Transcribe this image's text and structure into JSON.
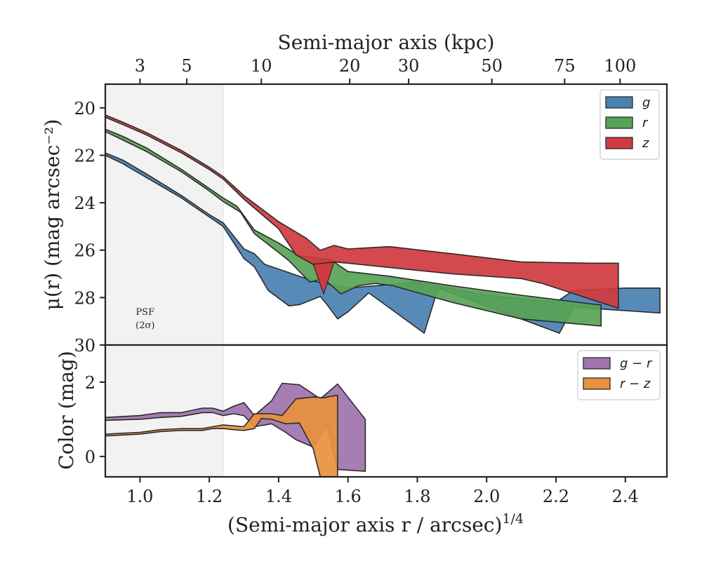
{
  "chart_data": [
    {
      "type": "area",
      "panel": "surface-brightness",
      "ylabel": "μ(r) (mag arcsec⁻²)",
      "top_xlabel": "Semi-major axis (kpc)",
      "xlim": [
        0.9,
        2.52
      ],
      "ylim": [
        30,
        19
      ],
      "y_inverted": true,
      "yticks": [
        20,
        22,
        24,
        26,
        28,
        30
      ],
      "top_ticks": [
        {
          "label": "3",
          "x": 1.0
        },
        {
          "label": "5",
          "x": 1.135
        },
        {
          "label": "10",
          "x": 1.35
        },
        {
          "label": "20",
          "x": 1.605
        },
        {
          "label": "30",
          "x": 1.775
        },
        {
          "label": "50",
          "x": 2.015
        },
        {
          "label": "75",
          "x": 2.225
        },
        {
          "label": "100",
          "x": 2.385
        }
      ],
      "psf_region": {
        "x_max": 1.24,
        "label_line1": "PSF",
        "label_line2": "(2σ)"
      },
      "legend": {
        "location": "top-right"
      },
      "series": [
        {
          "name": "g",
          "color": "#4a80b2",
          "upper": [
            [
              0.9,
              21.9
            ],
            [
              0.95,
              22.2
            ],
            [
              1.02,
              22.8
            ],
            [
              1.12,
              23.7
            ],
            [
              1.2,
              24.5
            ],
            [
              1.24,
              24.85
            ],
            [
              1.27,
              25.4
            ],
            [
              1.3,
              25.95
            ],
            [
              1.33,
              26.15
            ],
            [
              1.36,
              26.6
            ],
            [
              1.5,
              27.3
            ],
            [
              1.6,
              27.6
            ],
            [
              1.8,
              27.35
            ],
            [
              2.0,
              27.9
            ],
            [
              2.2,
              28.2
            ],
            [
              2.25,
              27.7
            ],
            [
              2.4,
              27.6
            ],
            [
              2.5,
              27.6
            ]
          ],
          "lower": [
            [
              2.5,
              28.65
            ],
            [
              2.4,
              28.55
            ],
            [
              2.25,
              28.4
            ],
            [
              2.21,
              29.5
            ],
            [
              1.86,
              27.6
            ],
            [
              1.82,
              29.5
            ],
            [
              1.66,
              27.8
            ],
            [
              1.6,
              28.6
            ],
            [
              1.57,
              28.9
            ],
            [
              1.54,
              28.3
            ],
            [
              1.52,
              27.95
            ],
            [
              1.46,
              28.3
            ],
            [
              1.43,
              28.35
            ],
            [
              1.37,
              27.7
            ],
            [
              1.33,
              26.7
            ],
            [
              1.3,
              26.35
            ],
            [
              1.24,
              25.0
            ],
            [
              1.2,
              24.6
            ],
            [
              1.12,
              23.8
            ],
            [
              1.02,
              22.95
            ],
            [
              0.95,
              22.35
            ],
            [
              0.9,
              22.0
            ]
          ]
        },
        {
          "name": "r",
          "color": "#57a355",
          "upper": [
            [
              0.9,
              20.9
            ],
            [
              0.95,
              21.2
            ],
            [
              1.02,
              21.7
            ],
            [
              1.12,
              22.6
            ],
            [
              1.2,
              23.4
            ],
            [
              1.24,
              23.8
            ],
            [
              1.28,
              24.15
            ],
            [
              1.33,
              25.15
            ],
            [
              1.4,
              25.7
            ],
            [
              1.46,
              26.25
            ],
            [
              1.55,
              26.4
            ],
            [
              1.6,
              26.9
            ],
            [
              1.72,
              27.1
            ],
            [
              1.9,
              27.5
            ],
            [
              2.1,
              27.9
            ],
            [
              2.32,
              28.3
            ],
            [
              2.33,
              28.3
            ]
          ],
          "lower": [
            [
              2.33,
              29.2
            ],
            [
              2.1,
              28.9
            ],
            [
              1.9,
              28.2
            ],
            [
              1.73,
              27.5
            ],
            [
              1.68,
              27.4
            ],
            [
              1.63,
              27.5
            ],
            [
              1.58,
              27.85
            ],
            [
              1.53,
              27.2
            ],
            [
              1.49,
              27.35
            ],
            [
              1.43,
              26.45
            ],
            [
              1.4,
              26.1
            ],
            [
              1.33,
              25.3
            ],
            [
              1.29,
              24.4
            ],
            [
              1.24,
              23.95
            ],
            [
              1.2,
              23.5
            ],
            [
              1.12,
              22.7
            ],
            [
              1.02,
              21.85
            ],
            [
              0.95,
              21.35
            ],
            [
              0.9,
              21.0
            ]
          ]
        },
        {
          "name": "z",
          "color": "#d03a3e",
          "upper": [
            [
              0.9,
              20.3
            ],
            [
              0.95,
              20.6
            ],
            [
              1.02,
              21.05
            ],
            [
              1.12,
              21.8
            ],
            [
              1.2,
              22.5
            ],
            [
              1.24,
              22.9
            ],
            [
              1.3,
              23.7
            ],
            [
              1.4,
              24.8
            ],
            [
              1.48,
              25.5
            ],
            [
              1.52,
              26.0
            ],
            [
              1.56,
              25.8
            ],
            [
              1.6,
              25.95
            ],
            [
              1.72,
              25.85
            ],
            [
              1.9,
              26.15
            ],
            [
              2.1,
              26.5
            ],
            [
              2.3,
              26.55
            ],
            [
              2.38,
              26.55
            ]
          ],
          "lower": [
            [
              2.38,
              28.45
            ],
            [
              2.16,
              27.4
            ],
            [
              2.1,
              27.2
            ],
            [
              1.9,
              27.0
            ],
            [
              1.7,
              26.7
            ],
            [
              1.6,
              26.55
            ],
            [
              1.56,
              26.5
            ],
            [
              1.5,
              26.6
            ],
            [
              1.45,
              26.2
            ],
            [
              1.4,
              25.1
            ],
            [
              1.3,
              23.85
            ],
            [
              1.24,
              23.0
            ],
            [
              1.2,
              22.6
            ],
            [
              1.12,
              21.9
            ],
            [
              1.02,
              21.15
            ],
            [
              0.95,
              20.7
            ],
            [
              0.9,
              20.4
            ]
          ],
          "hole": [
            [
              1.5,
              26.6
            ],
            [
              1.56,
              26.5
            ],
            [
              1.53,
              27.85
            ]
          ]
        }
      ]
    },
    {
      "type": "area",
      "panel": "color",
      "xlabel": "(Semi-major axis r / arcsec)",
      "xlabel_exponent": "1/4",
      "ylabel": "Color (mag)",
      "xlim": [
        0.9,
        2.52
      ],
      "ylim": [
        -0.55,
        3.0
      ],
      "yticks": [
        0,
        2
      ],
      "xticks": [
        1.0,
        1.2,
        1.4,
        1.6,
        1.8,
        2.0,
        2.2,
        2.4
      ],
      "xtick_labels": [
        "1.0",
        "1.2",
        "1.4",
        "1.6",
        "1.8",
        "2.0",
        "2.2",
        "2.4"
      ],
      "legend": {
        "location": "top-right"
      },
      "series": [
        {
          "name": "g − r",
          "color": "#a073ac",
          "upper": [
            [
              0.9,
              1.05
            ],
            [
              1.0,
              1.1
            ],
            [
              1.06,
              1.18
            ],
            [
              1.12,
              1.18
            ],
            [
              1.18,
              1.3
            ],
            [
              1.21,
              1.3
            ],
            [
              1.24,
              1.22
            ],
            [
              1.27,
              1.35
            ],
            [
              1.3,
              1.45
            ],
            [
              1.33,
              1.1
            ],
            [
              1.38,
              1.5
            ],
            [
              1.41,
              1.97
            ],
            [
              1.46,
              1.93
            ],
            [
              1.52,
              1.55
            ],
            [
              1.57,
              1.95
            ],
            [
              1.65,
              1.0
            ]
          ],
          "lower": [
            [
              1.65,
              -0.4
            ],
            [
              1.57,
              -0.35
            ],
            [
              1.54,
              0.85
            ],
            [
              1.5,
              0.25
            ],
            [
              1.45,
              0.45
            ],
            [
              1.42,
              0.65
            ],
            [
              1.38,
              0.88
            ],
            [
              1.33,
              0.8
            ],
            [
              1.3,
              1.1
            ],
            [
              1.27,
              1.15
            ],
            [
              1.24,
              1.1
            ],
            [
              1.21,
              1.18
            ],
            [
              1.18,
              1.18
            ],
            [
              1.12,
              1.08
            ],
            [
              1.06,
              1.05
            ],
            [
              1.0,
              1.0
            ],
            [
              0.9,
              0.97
            ]
          ]
        },
        {
          "name": "r − z",
          "color": "#e8913e",
          "upper": [
            [
              0.9,
              0.6
            ],
            [
              1.0,
              0.65
            ],
            [
              1.06,
              0.72
            ],
            [
              1.12,
              0.75
            ],
            [
              1.18,
              0.75
            ],
            [
              1.21,
              0.8
            ],
            [
              1.24,
              0.85
            ],
            [
              1.3,
              0.8
            ],
            [
              1.33,
              1.15
            ],
            [
              1.38,
              1.15
            ],
            [
              1.41,
              1.1
            ],
            [
              1.45,
              1.55
            ],
            [
              1.5,
              1.6
            ],
            [
              1.53,
              1.58
            ],
            [
              1.57,
              1.65
            ]
          ],
          "lower": [
            [
              1.57,
              -0.55
            ],
            [
              1.52,
              -0.55
            ],
            [
              1.5,
              0.2
            ],
            [
              1.46,
              0.9
            ],
            [
              1.42,
              0.88
            ],
            [
              1.38,
              1.0
            ],
            [
              1.35,
              1.02
            ],
            [
              1.33,
              0.75
            ],
            [
              1.3,
              0.7
            ],
            [
              1.27,
              0.72
            ],
            [
              1.24,
              0.75
            ],
            [
              1.21,
              0.75
            ],
            [
              1.18,
              0.7
            ],
            [
              1.12,
              0.7
            ],
            [
              1.06,
              0.67
            ],
            [
              1.0,
              0.6
            ],
            [
              0.9,
              0.55
            ]
          ]
        }
      ]
    }
  ]
}
